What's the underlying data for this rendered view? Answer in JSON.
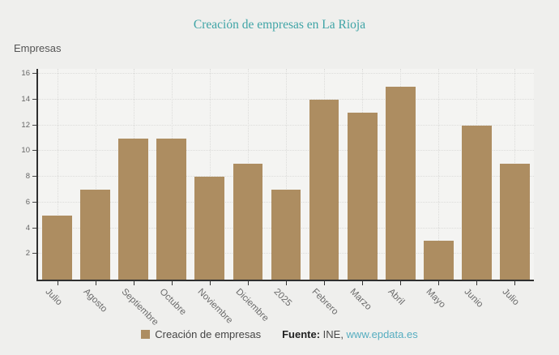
{
  "title": "Creación de empresas en La Rioja",
  "y_axis_title": "Empresas",
  "legend": {
    "series_label": "Creación de empresas",
    "source_label": "Fuente:",
    "source_name": " INE, ",
    "source_link": "www.epdata.es"
  },
  "colors": {
    "bar": "#ad8d61",
    "title": "#3fa4a6",
    "link": "#56adc0",
    "axis": "#2f2f2f",
    "grid": "#dcdcda",
    "plot_bg": "#f4f4f2",
    "page_bg": "#efefed"
  },
  "chart_data": {
    "type": "bar",
    "categories": [
      "Julio",
      "Agosto",
      "Septiembre",
      "Octubre",
      "Noviembre",
      "Diciembre",
      "2025",
      "Febrero",
      "Marzo",
      "Abril",
      "Mayo",
      "Junio",
      "Julio"
    ],
    "values": [
      5,
      7,
      11,
      11,
      8,
      9,
      7,
      14,
      13,
      15,
      3,
      12,
      9
    ],
    "series_name": "Creación de empresas",
    "title": "Creación de empresas en La Rioja",
    "xlabel": "",
    "ylabel": "Empresas",
    "ylim": [
      0,
      16.4
    ],
    "yticks": [
      2,
      4,
      6,
      8,
      10,
      12,
      14,
      16
    ],
    "grid": true,
    "legend_position": "bottom",
    "source": "Fuente: INE, www.epdata.es"
  }
}
